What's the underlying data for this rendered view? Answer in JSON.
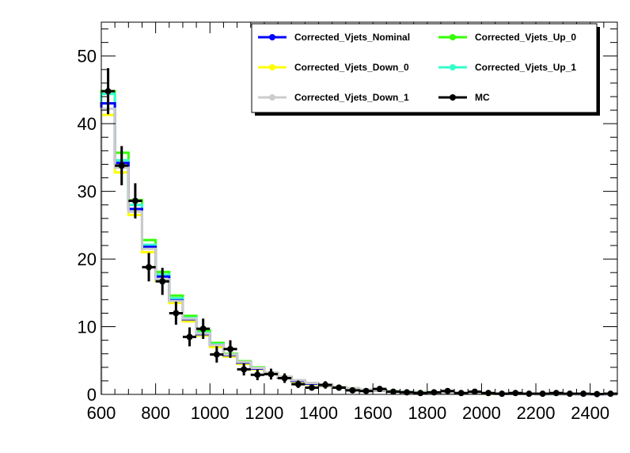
{
  "chart_data": {
    "type": "line",
    "title": "",
    "xlabel": "",
    "ylabel": "",
    "xlim": [
      600,
      2500
    ],
    "ylim": [
      0,
      55
    ],
    "x_ticks": [
      600,
      800,
      1000,
      1200,
      1400,
      1600,
      1800,
      2000,
      2200,
      2400
    ],
    "y_ticks": [
      0,
      10,
      20,
      30,
      40,
      50
    ],
    "legend_position": "top-right",
    "grid": false,
    "bin_edges": [
      600,
      650,
      700,
      750,
      800,
      850,
      900,
      950,
      1000,
      1050,
      1100,
      1150,
      1200,
      1250,
      1300,
      1350,
      1400,
      1450,
      1500,
      1550,
      1600,
      1650,
      1700,
      1750,
      1800,
      1850,
      1900,
      1950,
      2000,
      2050,
      2100,
      2150,
      2200,
      2250,
      2300,
      2350,
      2400,
      2450,
      2500
    ],
    "series": [
      {
        "name": "Corrected_Vjets_Up_0",
        "color": "#33ff00",
        "style": "step",
        "values": [
          44.8,
          35.7,
          28.7,
          22.8,
          18.1,
          14.6,
          11.6,
          9.4,
          7.6,
          6.0,
          4.9,
          4.0,
          3.2,
          2.6,
          2.1,
          1.7,
          1.4,
          1.1,
          0.9,
          0.7,
          0.6,
          0.5,
          0.4,
          0.33,
          0.27,
          0.22,
          0.18,
          0.15,
          0.12,
          0.1,
          0.08,
          0.07,
          0.06,
          0.05,
          0.04,
          0.03,
          0.03,
          0.02
        ]
      },
      {
        "name": "Corrected_Vjets_Up_1",
        "color": "#33ffcc",
        "style": "step",
        "values": [
          44.4,
          34.6,
          28.0,
          22.1,
          17.7,
          14.2,
          11.3,
          9.1,
          7.4,
          5.9,
          4.8,
          3.9,
          3.1,
          2.5,
          2.0,
          1.6,
          1.3,
          1.05,
          0.85,
          0.68,
          0.56,
          0.45,
          0.37,
          0.3,
          0.25,
          0.2,
          0.16,
          0.13,
          0.11,
          0.09,
          0.07,
          0.06,
          0.05,
          0.04,
          0.04,
          0.03,
          0.02,
          0.02
        ]
      },
      {
        "name": "Corrected_Vjets_Down_0",
        "color": "#ffff00",
        "style": "step",
        "values": [
          41.3,
          32.8,
          26.5,
          21.0,
          16.8,
          13.5,
          10.8,
          8.7,
          7.0,
          5.6,
          4.5,
          3.7,
          3.0,
          2.4,
          1.9,
          1.5,
          1.25,
          1.0,
          0.8,
          0.65,
          0.52,
          0.42,
          0.34,
          0.28,
          0.23,
          0.19,
          0.15,
          0.12,
          0.1,
          0.08,
          0.07,
          0.06,
          0.05,
          0.04,
          0.03,
          0.03,
          0.02,
          0.02
        ]
      },
      {
        "name": "Corrected_Vjets_Nominal",
        "color": "#0000ff",
        "style": "step",
        "values": [
          43.0,
          34.2,
          27.4,
          21.8,
          17.4,
          13.9,
          11.1,
          8.9,
          7.3,
          5.8,
          4.7,
          3.8,
          3.1,
          2.5,
          2.0,
          1.6,
          1.3,
          1.05,
          0.85,
          0.68,
          0.55,
          0.44,
          0.36,
          0.29,
          0.24,
          0.2,
          0.16,
          0.13,
          0.11,
          0.09,
          0.07,
          0.06,
          0.05,
          0.04,
          0.04,
          0.03,
          0.02,
          0.02
        ]
      },
      {
        "name": "Corrected_Vjets_Down_1",
        "color": "#cccccc",
        "style": "step",
        "values": [
          42.2,
          33.5,
          27.0,
          21.5,
          17.0,
          13.8,
          11.2,
          9.0,
          7.3,
          5.9,
          4.8,
          3.9,
          3.2,
          2.6,
          2.1,
          1.7,
          1.35,
          1.1,
          0.9,
          0.72,
          0.58,
          0.47,
          0.38,
          0.31,
          0.25,
          0.2,
          0.17,
          0.14,
          0.11,
          0.09,
          0.07,
          0.06,
          0.05,
          0.04,
          0.04,
          0.03,
          0.02,
          0.02
        ]
      },
      {
        "name": "MC",
        "color": "#000000",
        "style": "points",
        "x": [
          625,
          675,
          725,
          775,
          825,
          875,
          925,
          975,
          1025,
          1075,
          1125,
          1175,
          1225,
          1275,
          1325,
          1375,
          1425,
          1475,
          1525,
          1575,
          1625,
          1675,
          1725,
          1775,
          1825,
          1875,
          1925,
          1975,
          2025,
          2075,
          2125,
          2175,
          2225,
          2275,
          2325,
          2375,
          2425,
          2475
        ],
        "values": [
          44.8,
          33.8,
          28.6,
          18.8,
          16.7,
          12.0,
          8.5,
          9.7,
          5.9,
          6.7,
          3.7,
          2.9,
          3.0,
          2.4,
          1.5,
          1.0,
          1.4,
          1.0,
          0.6,
          0.5,
          0.8,
          0.4,
          0.3,
          0.2,
          0.3,
          0.5,
          0.2,
          0.4,
          0.2,
          0.1,
          0.2,
          0.1,
          0.1,
          0.2,
          0.1,
          0.1,
          0.05,
          0.1
        ],
        "errors": [
          3.4,
          2.9,
          2.6,
          2.1,
          2.0,
          1.7,
          1.4,
          1.5,
          1.2,
          1.3,
          0.9,
          0.8,
          0.8,
          0.7,
          0.55,
          0.45,
          0.55,
          0.45,
          0.35,
          0.3,
          0.4,
          0.28,
          0.24,
          0.2,
          0.24,
          0.3,
          0.2,
          0.28,
          0.2,
          0.14,
          0.2,
          0.14,
          0.14,
          0.2,
          0.14,
          0.14,
          0.1,
          0.14
        ]
      }
    ],
    "legend": [
      {
        "name": "Corrected_Vjets_Nominal",
        "color": "#0000ff"
      },
      {
        "name": "Corrected_Vjets_Up_0",
        "color": "#33ff00"
      },
      {
        "name": "Corrected_Vjets_Down_0",
        "color": "#ffff00"
      },
      {
        "name": "Corrected_Vjets_Up_1",
        "color": "#33ffcc"
      },
      {
        "name": "Corrected_Vjets_Down_1",
        "color": "#cccccc"
      },
      {
        "name": "MC",
        "color": "#000000"
      }
    ]
  }
}
